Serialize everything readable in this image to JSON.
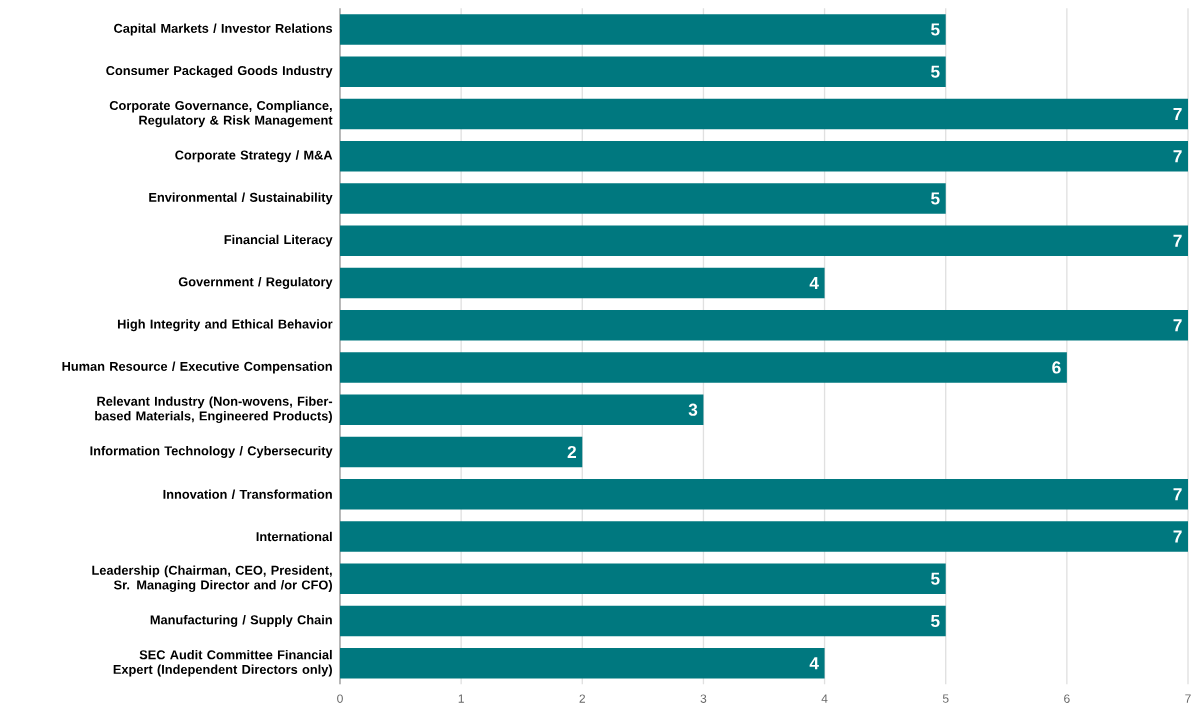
{
  "chart_data": {
    "type": "bar",
    "orientation": "horizontal",
    "categories": [
      "Capital Markets / Investor Relations",
      "Consumer Packaged Goods Industry",
      "Corporate Governance, Compliance, Regulatory & Risk Management",
      "Corporate Strategy / M&A",
      "Environmental / Sustainability",
      "Financial Literacy",
      "Government / Regulatory",
      "High Integrity and Ethical Behavior",
      "Human Resource / Executive Compensation",
      "Relevant Industry (Non-wovens, Fiber-based Materials, Engineered Products)",
      "Information Technology / Cybersecurity",
      "Innovation / Transformation",
      "International",
      "Leadership  (Chairman, CEO, President, Sr.  Managing Director and /or CFO)",
      "Manufacturing / Supply Chain",
      "SEC Audit Committee Financial Expert (Independent Directors only)"
    ],
    "values": [
      5,
      5,
      7,
      7,
      5,
      7,
      4,
      7,
      6,
      3,
      2,
      7,
      7,
      5,
      5,
      4
    ],
    "color": "#00787f",
    "xlim": [
      0,
      7
    ],
    "xticks": [
      0,
      1,
      2,
      3,
      4,
      5,
      6,
      7
    ],
    "grid": "x",
    "data_labels": true
  }
}
